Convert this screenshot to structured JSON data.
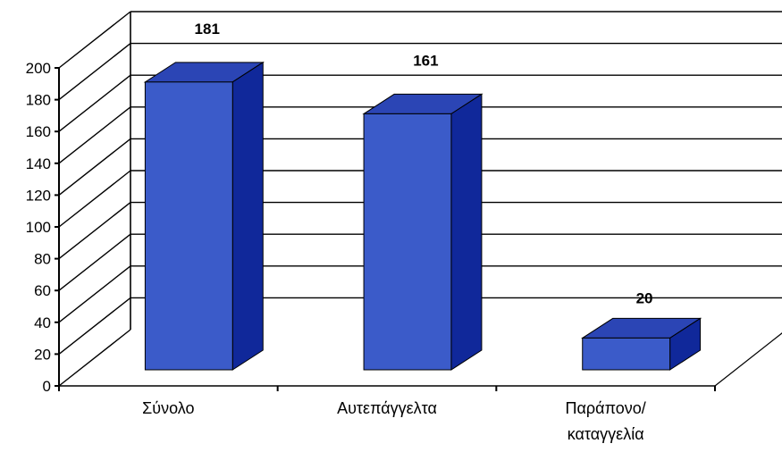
{
  "chart_data": {
    "type": "bar",
    "title": "",
    "xlabel": "",
    "ylabel": "",
    "categories": [
      [
        "Σύνολο"
      ],
      [
        "Αυτεπάγγελτα"
      ],
      [
        "Παράπονο/",
        "καταγγελία"
      ]
    ],
    "values": [
      181,
      161,
      20
    ],
    "value_labels": [
      "181",
      "161",
      "20"
    ],
    "ylim": [
      0,
      200
    ],
    "yticks": [
      "0",
      "20",
      "40",
      "60",
      "80",
      "100",
      "120",
      "140",
      "160",
      "180",
      "200"
    ],
    "grid": true,
    "style": "3d-column",
    "colors": {
      "bar_front": "#3B5BC9",
      "bar_side": "#10289A",
      "bar_top": "#2B45B5",
      "grid": "#000000",
      "label": "#000000"
    }
  }
}
